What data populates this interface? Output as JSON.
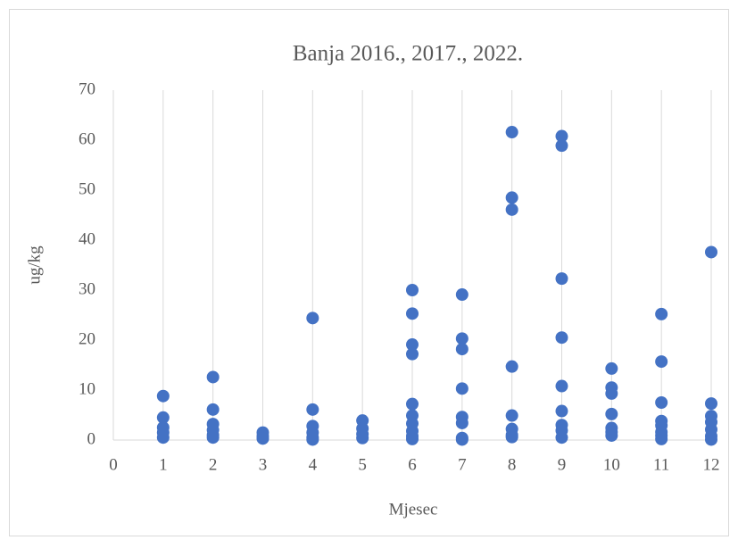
{
  "chart_data": {
    "type": "scatter",
    "title": "Banja 2016., 2017., 2022.",
    "x_label": "Mjesec",
    "y_label": "ug/kg",
    "xlim": [
      0,
      12
    ],
    "xticks": [
      0,
      1,
      2,
      3,
      4,
      5,
      6,
      7,
      8,
      9,
      10,
      11,
      12
    ],
    "ylim": [
      0,
      70
    ],
    "yticks": [
      0,
      10,
      20,
      30,
      40,
      50,
      60,
      70
    ],
    "xgrid": true,
    "ygrid": false,
    "series": [
      {
        "color": "#4472c4",
        "x": [
          1,
          1,
          1,
          1,
          1,
          2,
          2,
          2,
          2,
          2,
          2,
          3,
          3,
          3,
          4,
          4,
          4,
          4,
          4,
          4,
          5,
          5,
          5,
          5,
          6,
          6,
          6,
          6,
          6,
          6,
          6,
          6,
          6,
          6,
          7,
          7,
          7,
          7,
          7,
          7,
          7,
          7,
          8,
          8,
          8,
          8,
          8,
          8,
          8,
          8,
          9,
          9,
          9,
          9,
          9,
          9,
          9,
          9,
          9,
          10,
          10,
          10,
          10,
          10,
          10,
          10,
          11,
          11,
          11,
          11,
          11,
          11,
          11,
          11,
          12,
          12,
          12,
          12,
          12,
          12,
          12
        ],
        "values": [
          8.8,
          4.5,
          2.5,
          1.5,
          0.5,
          12.6,
          6.1,
          3.2,
          2.0,
          1.0,
          0.5,
          1.5,
          0.8,
          0.3,
          24.4,
          6.1,
          2.8,
          1.5,
          0.5,
          0.1,
          3.9,
          2.3,
          1.2,
          0.4,
          30.0,
          25.3,
          19.1,
          17.2,
          7.2,
          4.9,
          3.3,
          1.8,
          0.8,
          0.2,
          29.1,
          20.3,
          18.2,
          10.3,
          4.6,
          3.4,
          0.4,
          0.1,
          61.6,
          48.5,
          46.1,
          14.7,
          4.9,
          2.2,
          1.0,
          0.6,
          60.8,
          58.9,
          32.3,
          20.5,
          10.8,
          5.8,
          3.0,
          1.9,
          0.5,
          14.3,
          10.5,
          9.3,
          5.2,
          2.4,
          1.6,
          0.9,
          25.2,
          15.7,
          7.5,
          3.8,
          2.9,
          1.6,
          0.9,
          0.2,
          37.6,
          7.3,
          4.8,
          3.6,
          2.1,
          0.8,
          0.1
        ]
      }
    ]
  }
}
